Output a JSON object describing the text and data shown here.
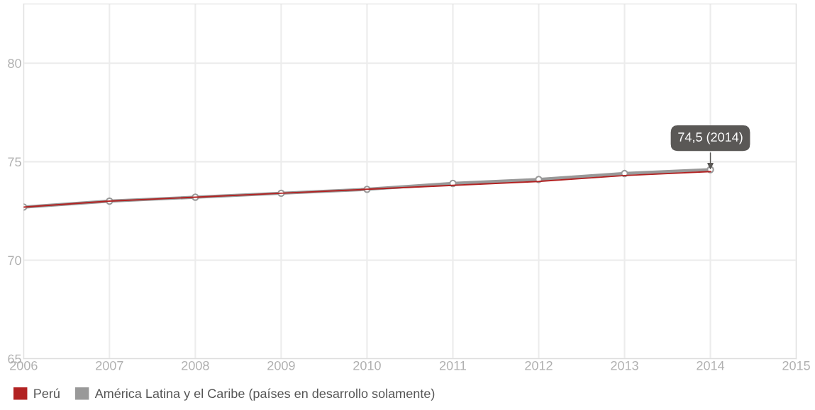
{
  "chart_data": {
    "type": "line",
    "x": [
      2006,
      2007,
      2008,
      2009,
      2010,
      2011,
      2012,
      2013,
      2014
    ],
    "series": [
      {
        "name": "Perú",
        "color": "#b22222",
        "marker": "none",
        "values": [
          72.7,
          73.0,
          73.2,
          73.4,
          73.6,
          73.8,
          74.0,
          74.3,
          74.5
        ]
      },
      {
        "name": "América Latina y el Caribe (países en desarrollo solamente)",
        "color": "#999999",
        "marker": "circle",
        "values": [
          72.7,
          73.0,
          73.2,
          73.4,
          73.6,
          73.9,
          74.1,
          74.4,
          74.6
        ]
      }
    ],
    "xlim": [
      2006,
      2015
    ],
    "xticks": [
      2006,
      2007,
      2008,
      2009,
      2010,
      2011,
      2012,
      2013,
      2014,
      2015
    ],
    "ylim": [
      65,
      83
    ],
    "yticks": [
      65,
      70,
      75,
      80
    ],
    "grid": true,
    "legend": "bottom left",
    "line_style": "solid",
    "annotations": [
      {
        "text": "74,5 (2014)",
        "x": 2014,
        "y": 74.5
      }
    ]
  }
}
